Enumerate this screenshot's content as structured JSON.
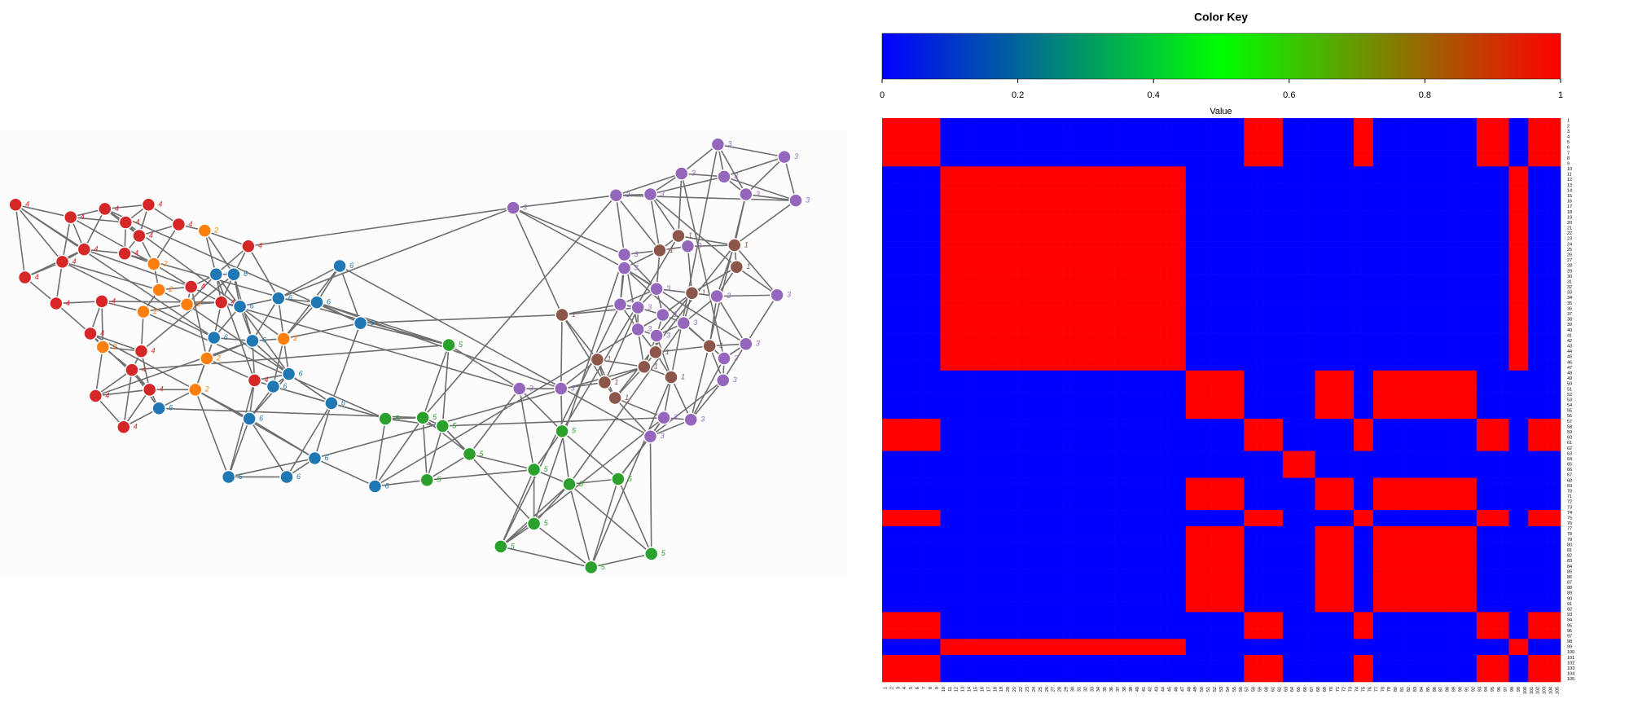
{
  "network": {
    "labels": [
      4,
      4,
      4,
      4,
      4,
      4,
      4,
      4,
      4,
      4,
      4,
      4,
      4,
      4,
      4,
      4,
      4,
      4,
      4,
      4,
      4,
      4,
      4,
      2,
      2,
      2,
      2,
      2,
      2,
      2,
      2,
      2,
      6,
      6,
      6,
      6,
      6,
      6,
      6,
      6,
      6,
      6,
      6,
      6,
      6,
      6,
      6,
      6,
      6,
      6,
      5,
      5,
      5,
      5,
      5,
      5,
      5,
      5,
      5,
      5,
      5,
      5,
      5,
      5,
      3,
      3,
      3,
      3,
      3,
      3,
      3,
      3,
      3,
      3,
      3,
      3,
      3,
      3,
      3,
      3,
      3,
      3,
      3,
      3,
      3,
      3,
      3,
      3,
      3,
      3,
      3,
      3,
      3,
      1,
      1,
      1,
      1,
      1,
      1,
      1,
      1,
      1,
      1,
      1,
      1,
      1
    ],
    "colors": {
      "1": "#8c564b",
      "2": "#ff7f0e",
      "3": "#9467bd",
      "4": "#d62728",
      "5": "#2ca02c",
      "6": "#1f77b4"
    }
  },
  "heatmap": {
    "key_title": "Color Key",
    "key_label": "Value",
    "xlim": [
      0,
      1
    ],
    "ticks": [
      0,
      0.2,
      0.4,
      0.6,
      0.8,
      1
    ],
    "colors": [
      "#0000ff",
      "#00ff00",
      "#ff0000"
    ],
    "labels": [
      1,
      2,
      3,
      4,
      5,
      6,
      7,
      8,
      9,
      10,
      11,
      12,
      13,
      14,
      15,
      16,
      17,
      18,
      19,
      20,
      21,
      22,
      23,
      24,
      25,
      26,
      27,
      28,
      29,
      30,
      31,
      32,
      33,
      34,
      35,
      36,
      37,
      38,
      39,
      40,
      41,
      42,
      43,
      44,
      45,
      46,
      47,
      48,
      49,
      50,
      51,
      52,
      53,
      54,
      55,
      56,
      57,
      58,
      59,
      60,
      61,
      62,
      63,
      64,
      65,
      66,
      67,
      68,
      69,
      70,
      71,
      72,
      73,
      74,
      75,
      76,
      77,
      78,
      79,
      80,
      81,
      82,
      83,
      84,
      85,
      86,
      87,
      88,
      89,
      90,
      91,
      92,
      93,
      94,
      95,
      96,
      97,
      98,
      99,
      100,
      101,
      102,
      103,
      104,
      105
    ],
    "groups": [
      3,
      3,
      3,
      3,
      3,
      3,
      3,
      3,
      3,
      1,
      1,
      1,
      1,
      1,
      1,
      1,
      1,
      1,
      1,
      1,
      1,
      1,
      1,
      1,
      1,
      1,
      1,
      1,
      1,
      1,
      1,
      1,
      1,
      1,
      1,
      1,
      1,
      1,
      1,
      1,
      1,
      1,
      1,
      1,
      1,
      1,
      1,
      2,
      2,
      2,
      2,
      2,
      2,
      2,
      2,
      2,
      3,
      3,
      3,
      3,
      3,
      3,
      4,
      4,
      4,
      4,
      4,
      2,
      2,
      2,
      2,
      2,
      2,
      3,
      3,
      3,
      2,
      2,
      2,
      2,
      2,
      2,
      2,
      2,
      2,
      2,
      2,
      2,
      2,
      2,
      2,
      2,
      3,
      3,
      3,
      3,
      3,
      1,
      1,
      1,
      3,
      3,
      3,
      3,
      3
    ]
  }
}
